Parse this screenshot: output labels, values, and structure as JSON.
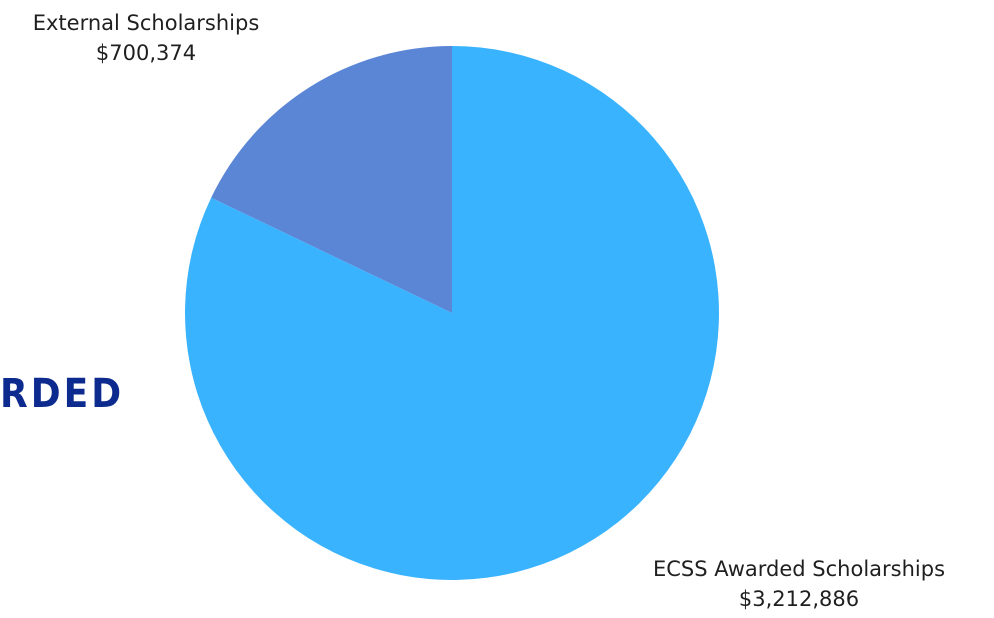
{
  "side_heading": {
    "text": "RDED",
    "color": "#0d2b8f"
  },
  "chart_data": {
    "type": "pie",
    "start_angle_deg": 0,
    "direction": "clockwise",
    "legend": "none",
    "slices": [
      {
        "label": "External Scholarships",
        "value": 700374,
        "value_label": "$700,374",
        "color": "#5b86d6"
      },
      {
        "label": "ECSS Awarded Scholarships",
        "value": 3212886,
        "value_label": "$3,212,886",
        "color": "#3ab3ff"
      }
    ]
  }
}
